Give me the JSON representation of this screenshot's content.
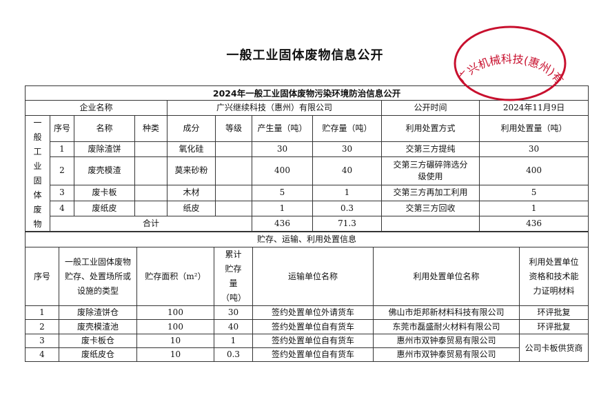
{
  "doc_title": "一般工业固体废物信息公开",
  "table1": {
    "title": "2024年一般工业固体废物污染环境防治信息公开",
    "company_label": "企业名称",
    "company_name": "广兴继续科技（惠州）有限公司",
    "date_label": "公开时间",
    "date_value": "2024年11月9日",
    "side_label": "一般工业固体废物",
    "headers": [
      "序号",
      "名称",
      "种类",
      "成分",
      "等级",
      "产生量（吨）",
      "贮存量（吨）",
      "利用处置方式",
      "利用处置量（吨）"
    ],
    "rows": [
      [
        "1",
        "废除渣饼",
        "",
        "氧化硅",
        "",
        "30",
        "30",
        "交第三方提纯",
        "30"
      ],
      [
        "2",
        "废壳模渣",
        "",
        "莫来砂粉",
        "",
        "400",
        "40",
        "交第三方碾碎筛选分级使用",
        "400"
      ],
      [
        "3",
        "废卡板",
        "",
        "木材",
        "",
        "5",
        "1",
        "交第三方再加工利用",
        "5"
      ],
      [
        "4",
        "废纸皮",
        "",
        "纸皮",
        "",
        "1",
        "0.3",
        "交第三方回收",
        "1"
      ]
    ],
    "total": {
      "label": "合计",
      "produced": "436",
      "stored": "71.3",
      "method": "",
      "disposed": "436"
    }
  },
  "table2": {
    "title": "贮存、运输、利用处置信息",
    "headers": [
      "序号",
      "一般工业固体废物贮存、处置场所或设施的类型",
      "贮存面积（m²）",
      "累计贮存量（吨）",
      "运输单位名称",
      "利用处置单位名称",
      "利用处置单位资格和技术能力证明材料"
    ],
    "rows": [
      [
        "1",
        "废除渣饼仓",
        "100",
        "30",
        "签约处置单位外请货车",
        "佛山市炬邦新材料科技有限公司",
        "环评批复"
      ],
      [
        "2",
        "废壳模渣池",
        "100",
        "40",
        "签约处置单位自有货车",
        "东莞市磊盛耐火材料有限公司",
        "环评批复"
      ],
      [
        "3",
        "废卡板仓",
        "10",
        "1",
        "签约处置单位自有货车",
        "惠州市双钟泰贸易有限公司",
        "公司卡板供货商"
      ],
      [
        "4",
        "废纸皮仓",
        "10",
        "0.3",
        "签约处置单位自有货车",
        "惠州市双钟泰贸易有限公司",
        ""
      ]
    ]
  },
  "stamp": {
    "text": "广兴机械科技(惠州)有限公司",
    "color": "#c8102e"
  }
}
